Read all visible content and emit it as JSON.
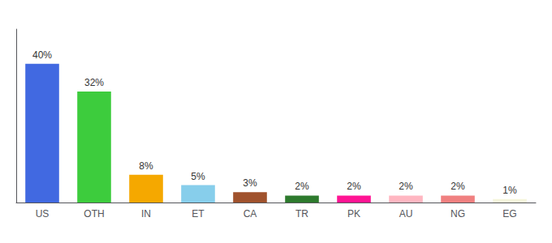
{
  "chart_data": {
    "type": "bar",
    "categories": [
      "US",
      "OTH",
      "IN",
      "ET",
      "CA",
      "TR",
      "PK",
      "AU",
      "NG",
      "EG"
    ],
    "values": [
      40,
      32,
      8,
      5,
      3,
      2,
      2,
      2,
      2,
      1
    ],
    "value_labels": [
      "40%",
      "32%",
      "8%",
      "5%",
      "3%",
      "2%",
      "2%",
      "2%",
      "2%",
      "1%"
    ],
    "colors": [
      "#4169e1",
      "#3dcc3d",
      "#f5a800",
      "#87ceeb",
      "#a0522d",
      "#2d7a2d",
      "#ff1493",
      "#ffb6c1",
      "#f08080",
      "#f5f5dc"
    ],
    "ylim": [
      0,
      50
    ],
    "grid": false,
    "data_labels": true,
    "tick_labels": "x"
  }
}
